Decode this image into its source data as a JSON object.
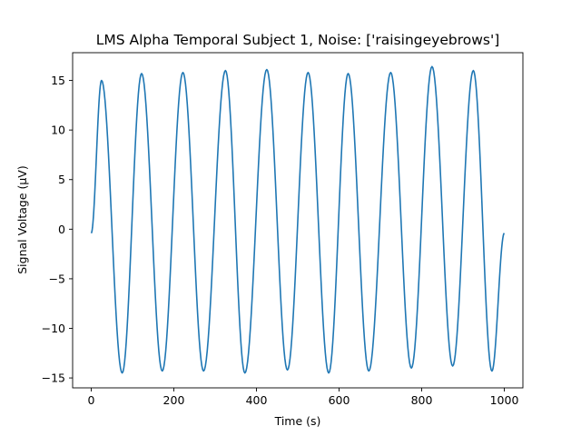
{
  "chart_data": {
    "type": "line",
    "title": "LMS Alpha Temporal Subject 1, Noise: ['raisingeyebrows']",
    "xlabel": "Time (s)",
    "ylabel": "Signal Voltage (µV)",
    "xlim": [
      -45,
      1045
    ],
    "ylim": [
      -16.0,
      17.8
    ],
    "xticks": [
      0,
      200,
      400,
      600,
      800,
      1000
    ],
    "yticks": [
      -15,
      -10,
      -5,
      0,
      5,
      10,
      15
    ],
    "grid": false,
    "colors": {
      "series": "#1f77b4"
    },
    "series": [
      {
        "x": [
          0,
          25,
          75,
          122,
          172,
          222,
          272,
          325,
          372,
          425,
          475,
          525,
          575,
          622,
          672,
          725,
          775,
          825,
          875,
          925,
          970,
          1000
        ],
        "y": [
          -0.4,
          15.0,
          -14.5,
          15.7,
          -14.3,
          15.8,
          -14.3,
          16.0,
          -14.5,
          16.1,
          -14.2,
          15.8,
          -14.5,
          15.7,
          -14.3,
          15.8,
          -14.0,
          16.4,
          -13.8,
          16.0,
          -14.3,
          -0.4
        ]
      }
    ]
  }
}
